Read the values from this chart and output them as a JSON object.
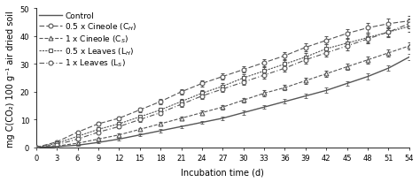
{
  "x": [
    0,
    3,
    6,
    9,
    12,
    15,
    18,
    21,
    24,
    27,
    30,
    33,
    36,
    39,
    42,
    45,
    48,
    51,
    54
  ],
  "control": [
    0,
    0.3,
    0.8,
    1.8,
    3.0,
    4.5,
    6.0,
    7.5,
    9.0,
    10.5,
    12.5,
    14.5,
    16.5,
    18.5,
    20.5,
    23.0,
    25.5,
    28.5,
    32.5
  ],
  "control_err": [
    0,
    0.1,
    0.2,
    0.3,
    0.4,
    0.4,
    0.5,
    0.5,
    0.6,
    0.6,
    0.7,
    0.7,
    0.8,
    0.8,
    0.9,
    0.9,
    1.0,
    1.0,
    1.1
  ],
  "ch": [
    0,
    2.0,
    5.5,
    8.5,
    10.5,
    13.5,
    16.5,
    20.0,
    23.0,
    25.5,
    28.0,
    30.5,
    33.0,
    36.0,
    38.5,
    41.0,
    43.0,
    44.5,
    45.5
  ],
  "ch_err": [
    0,
    0.3,
    0.5,
    0.6,
    0.7,
    0.8,
    0.9,
    1.0,
    1.1,
    1.1,
    1.2,
    1.3,
    1.3,
    1.4,
    1.5,
    1.5,
    1.6,
    1.7,
    1.8
  ],
  "cs": [
    0,
    0.5,
    1.5,
    3.0,
    4.5,
    6.5,
    8.5,
    10.5,
    12.5,
    14.5,
    17.0,
    19.5,
    21.5,
    24.0,
    26.5,
    29.0,
    31.5,
    34.0,
    36.5
  ],
  "cs_err": [
    0,
    0.2,
    0.3,
    0.4,
    0.5,
    0.6,
    0.6,
    0.7,
    0.8,
    0.8,
    0.9,
    1.0,
    1.0,
    1.1,
    1.2,
    1.2,
    1.3,
    1.3,
    1.4
  ],
  "lh": [
    0,
    1.5,
    4.0,
    6.5,
    8.5,
    11.0,
    13.5,
    16.5,
    19.5,
    22.0,
    25.0,
    27.5,
    30.0,
    32.5,
    35.5,
    37.5,
    39.5,
    41.5,
    43.5
  ],
  "lh_err": [
    0,
    0.3,
    0.5,
    0.6,
    0.7,
    0.8,
    0.9,
    1.0,
    1.1,
    1.2,
    1.2,
    1.3,
    1.4,
    1.4,
    1.5,
    1.6,
    1.6,
    1.7,
    1.8
  ],
  "ls": [
    0,
    1.0,
    3.0,
    5.5,
    7.5,
    10.0,
    12.5,
    15.5,
    18.5,
    21.0,
    23.5,
    26.0,
    28.5,
    31.5,
    34.0,
    36.5,
    39.0,
    41.5,
    44.5
  ],
  "ls_err": [
    0,
    0.2,
    0.4,
    0.5,
    0.6,
    0.7,
    0.8,
    0.9,
    1.0,
    1.1,
    1.1,
    1.2,
    1.3,
    1.4,
    1.4,
    1.5,
    1.5,
    1.6,
    1.7
  ],
  "xlabel": "Incubation time (d)",
  "ylabel": "mg C(CO₂) 100 g⁻¹ air dried soil",
  "xlim": [
    0,
    54
  ],
  "ylim": [
    0,
    50
  ],
  "xticks": [
    0,
    3,
    6,
    9,
    12,
    15,
    18,
    21,
    24,
    27,
    30,
    33,
    36,
    39,
    42,
    45,
    48,
    51,
    54
  ],
  "yticks": [
    0,
    10,
    20,
    30,
    40,
    50
  ],
  "legend_labels": [
    "Control",
    "0.5 x Cineole (C$_H$)",
    "1 x Cineole (C$_S$)",
    "0.5 x Leaves (L$_H$)",
    "1 x Leaves (L$_S$)"
  ],
  "color_all": "#555555",
  "axis_fontsize": 7,
  "tick_fontsize": 6,
  "legend_fontsize": 6.5
}
